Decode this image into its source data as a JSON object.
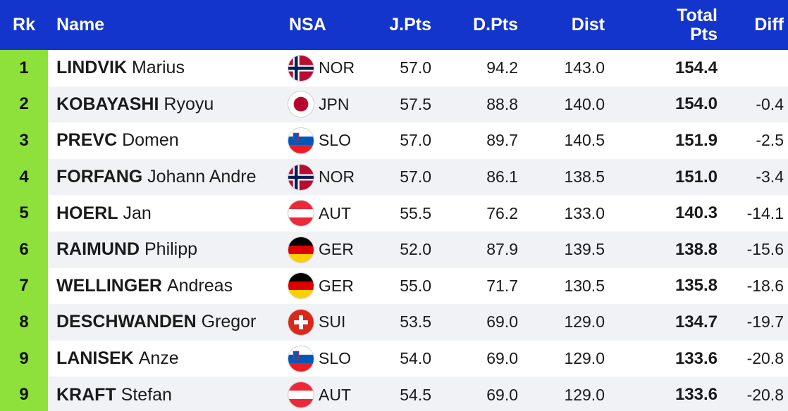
{
  "header": {
    "rk": "Rk",
    "name": "Name",
    "nsa": "NSA",
    "jpts": "J.Pts",
    "dpts": "D.Pts",
    "dist": "Dist",
    "total_line1": "Total",
    "total_line2": "Pts",
    "diff": "Diff"
  },
  "colors": {
    "header_bg": "#1435cc",
    "rank_bg": "#8ee13a"
  },
  "rows": [
    {
      "rk": "1",
      "last": "LINDVIK",
      "first": "Marius",
      "flag": "norway-flag-icon",
      "nsa": "NOR",
      "jpts": "57.0",
      "dpts": "94.2",
      "dist": "143.0",
      "total": "154.4",
      "diff": ""
    },
    {
      "rk": "2",
      "last": "KOBAYASHI",
      "first": "Ryoyu",
      "flag": "japan-flag-icon",
      "nsa": "JPN",
      "jpts": "57.5",
      "dpts": "88.8",
      "dist": "140.0",
      "total": "154.0",
      "diff": "-0.4"
    },
    {
      "rk": "3",
      "last": "PREVC",
      "first": "Domen",
      "flag": "slovenia-flag-icon",
      "nsa": "SLO",
      "jpts": "57.0",
      "dpts": "89.7",
      "dist": "140.5",
      "total": "151.9",
      "diff": "-2.5"
    },
    {
      "rk": "4",
      "last": "FORFANG",
      "first": "Johann Andre",
      "flag": "norway-flag-icon",
      "nsa": "NOR",
      "jpts": "57.0",
      "dpts": "86.1",
      "dist": "138.5",
      "total": "151.0",
      "diff": "-3.4"
    },
    {
      "rk": "5",
      "last": "HOERL",
      "first": "Jan",
      "flag": "austria-flag-icon",
      "nsa": "AUT",
      "jpts": "55.5",
      "dpts": "76.2",
      "dist": "133.0",
      "total": "140.3",
      "diff": "-14.1"
    },
    {
      "rk": "6",
      "last": "RAIMUND",
      "first": "Philipp",
      "flag": "germany-flag-icon",
      "nsa": "GER",
      "jpts": "52.0",
      "dpts": "87.9",
      "dist": "139.5",
      "total": "138.8",
      "diff": "-15.6"
    },
    {
      "rk": "7",
      "last": "WELLINGER",
      "first": "Andreas",
      "flag": "germany-flag-icon",
      "nsa": "GER",
      "jpts": "55.0",
      "dpts": "71.7",
      "dist": "130.5",
      "total": "135.8",
      "diff": "-18.6"
    },
    {
      "rk": "8",
      "last": "DESCHWANDEN",
      "first": "Gregor",
      "flag": "switzerland-flag-icon",
      "nsa": "SUI",
      "jpts": "53.5",
      "dpts": "69.0",
      "dist": "129.0",
      "total": "134.7",
      "diff": "-19.7"
    },
    {
      "rk": "9",
      "last": "LANISEK",
      "first": "Anze",
      "flag": "slovenia-flag-icon",
      "nsa": "SLO",
      "jpts": "54.0",
      "dpts": "69.0",
      "dist": "129.0",
      "total": "133.6",
      "diff": "-20.8"
    },
    {
      "rk": "9",
      "last": "KRAFT",
      "first": "Stefan",
      "flag": "austria-flag-icon",
      "nsa": "AUT",
      "jpts": "54.5",
      "dpts": "69.0",
      "dist": "129.0",
      "total": "133.6",
      "diff": "-20.8"
    }
  ]
}
